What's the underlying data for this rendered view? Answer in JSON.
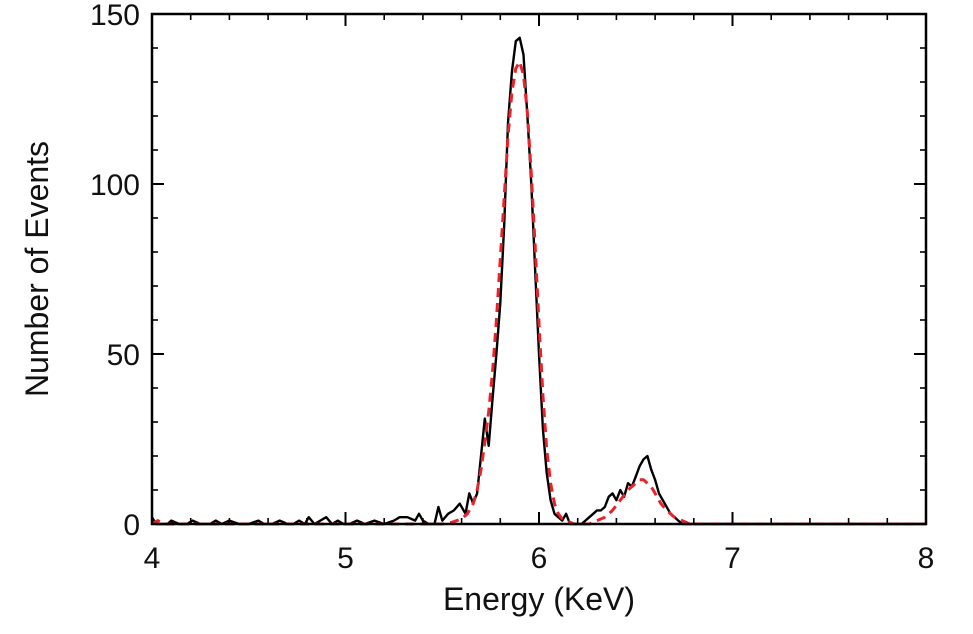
{
  "chart_data": {
    "type": "line",
    "title": "",
    "xlabel": "Energy (KeV)",
    "ylabel": "Number of Events",
    "xlim": [
      4,
      8
    ],
    "ylim": [
      0,
      150
    ],
    "xticks": [
      "4",
      "5",
      "6",
      "7",
      "8"
    ],
    "yticks": [
      "0",
      "50",
      "100",
      "150"
    ],
    "grid": false,
    "legend": "none",
    "series": [
      {
        "style": "solid",
        "color": "#000000",
        "x": [
          4.0,
          4.02,
          4.05,
          4.08,
          4.1,
          4.14,
          4.18,
          4.21,
          4.25,
          4.3,
          4.33,
          4.36,
          4.4,
          4.45,
          4.5,
          4.55,
          4.58,
          4.62,
          4.66,
          4.7,
          4.73,
          4.76,
          4.79,
          4.81,
          4.84,
          4.87,
          4.9,
          4.93,
          4.96,
          4.99,
          5.02,
          5.06,
          5.1,
          5.15,
          5.2,
          5.25,
          5.28,
          5.32,
          5.36,
          5.38,
          5.4,
          5.43,
          5.46,
          5.48,
          5.5,
          5.53,
          5.56,
          5.59,
          5.62,
          5.64,
          5.66,
          5.68,
          5.7,
          5.72,
          5.74,
          5.76,
          5.78,
          5.8,
          5.82,
          5.84,
          5.86,
          5.88,
          5.9,
          5.92,
          5.94,
          5.96,
          5.98,
          6.0,
          6.02,
          6.04,
          6.06,
          6.08,
          6.1,
          6.12,
          6.14,
          6.16,
          6.18,
          6.2,
          6.22,
          6.24,
          6.26,
          6.28,
          6.3,
          6.32,
          6.34,
          6.36,
          6.38,
          6.4,
          6.42,
          6.44,
          6.46,
          6.48,
          6.5,
          6.52,
          6.54,
          6.56,
          6.58,
          6.6,
          6.62,
          6.64,
          6.66,
          6.68,
          6.7,
          6.72,
          6.74,
          6.8,
          6.9,
          7.0,
          7.2,
          7.5,
          8.0
        ],
        "y": [
          2,
          0,
          0,
          0,
          1,
          0,
          0,
          1,
          0,
          0,
          1,
          0,
          1,
          0,
          0,
          1,
          0,
          0,
          1,
          0,
          0,
          1,
          0,
          2,
          0,
          1,
          2,
          0,
          1,
          0,
          0,
          1,
          0,
          1,
          0,
          1,
          2,
          2,
          1,
          3,
          1,
          0,
          0,
          5,
          1,
          3,
          4,
          6,
          3,
          9,
          6,
          9,
          20,
          31,
          23,
          37,
          50,
          65,
          88,
          118,
          133,
          142,
          143,
          138,
          120,
          100,
          75,
          50,
          28,
          15,
          7,
          3,
          2,
          1,
          3,
          0,
          0,
          0,
          0,
          1,
          2,
          3,
          4,
          4,
          5,
          8,
          9,
          7,
          10,
          8,
          12,
          11,
          14,
          17,
          19,
          20,
          16,
          13,
          9,
          7,
          5,
          3,
          2,
          1,
          0,
          0,
          0,
          0,
          0,
          0,
          0
        ]
      },
      {
        "style": "dashed",
        "color": "#e8232a",
        "x": [
          4.0,
          4.03,
          4.06,
          4.1,
          4.2,
          4.4,
          4.7,
          5.0,
          5.2,
          5.4,
          5.5,
          5.55,
          5.6,
          5.63,
          5.66,
          5.68,
          5.7,
          5.72,
          5.74,
          5.76,
          5.78,
          5.8,
          5.82,
          5.84,
          5.86,
          5.88,
          5.9,
          5.92,
          5.94,
          5.96,
          5.98,
          6.0,
          6.02,
          6.04,
          6.06,
          6.08,
          6.1,
          6.12,
          6.14,
          6.16,
          6.18,
          6.2,
          6.23,
          6.26,
          6.3,
          6.34,
          6.38,
          6.42,
          6.46,
          6.5,
          6.52,
          6.54,
          6.56,
          6.58,
          6.6,
          6.63,
          6.66,
          6.7,
          6.74,
          6.78,
          6.85,
          7.0,
          7.5,
          8.0
        ],
        "y": [
          0,
          1,
          0,
          0,
          0,
          0,
          0,
          0,
          0,
          0,
          0,
          0.5,
          1.5,
          3,
          6,
          10,
          16,
          24,
          33,
          45,
          60,
          78,
          96,
          114,
          127,
          134,
          136,
          132,
          121,
          103,
          82,
          59,
          38,
          22,
          12,
          6,
          3,
          1.5,
          1,
          0.5,
          0,
          0,
          0,
          0,
          1,
          2,
          4,
          7,
          10,
          12,
          13,
          13,
          12,
          11,
          9,
          6,
          4,
          2,
          1,
          0,
          0,
          0,
          0,
          0
        ]
      }
    ]
  }
}
